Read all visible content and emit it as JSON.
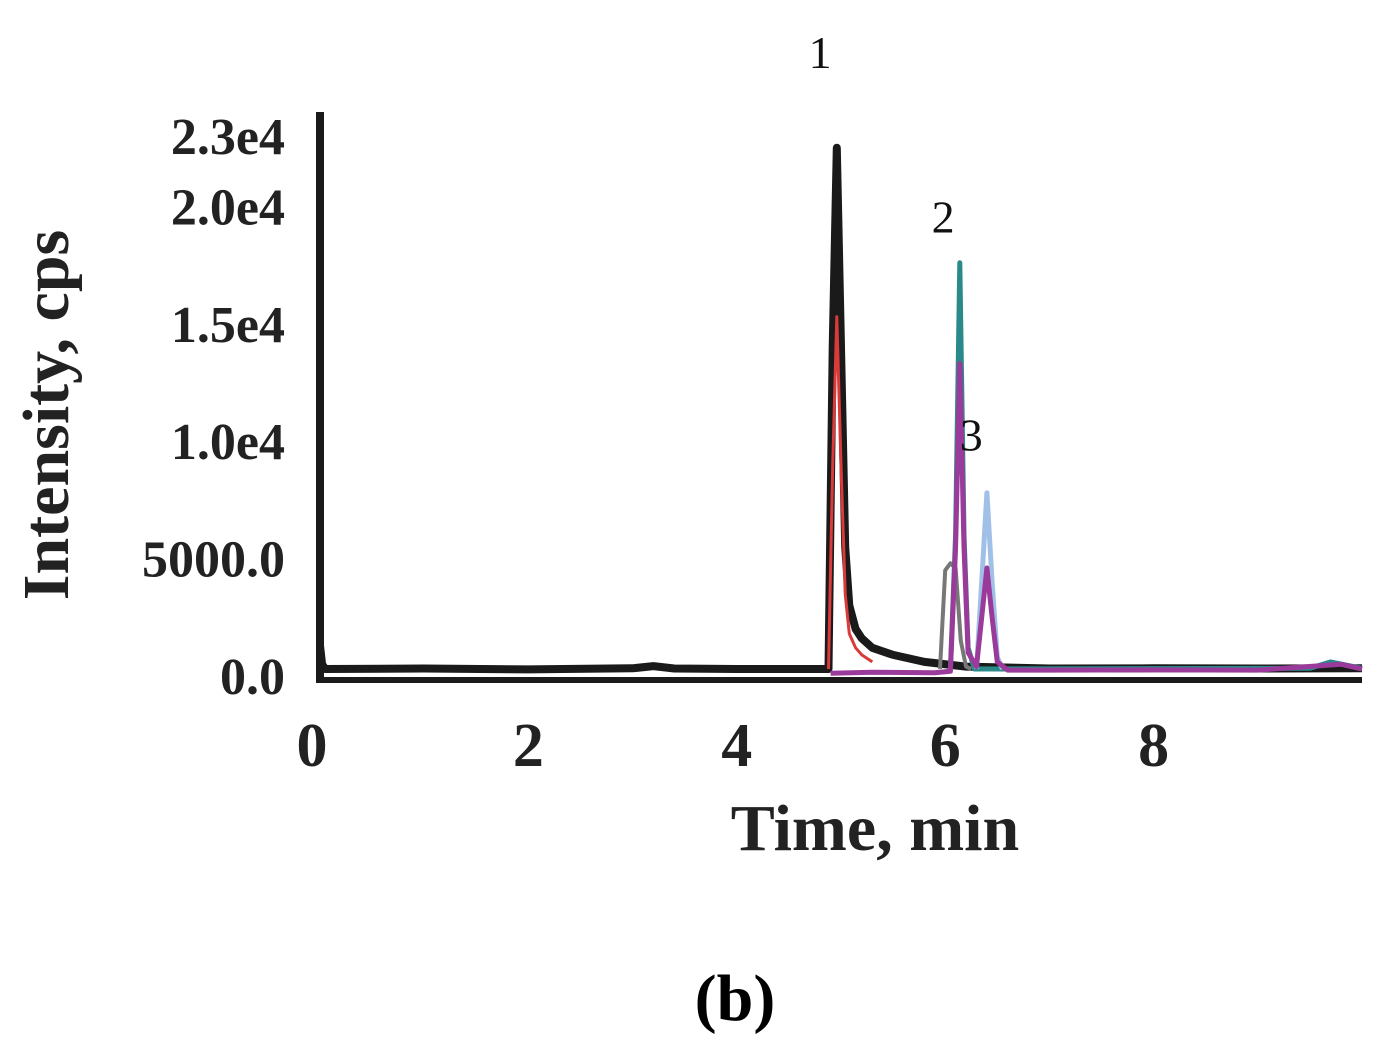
{
  "chart_data": {
    "type": "line",
    "xlabel": "Time, min",
    "ylabel": "Intensity, cps",
    "xlim": [
      0,
      10
    ],
    "ylim": [
      0,
      23000
    ],
    "x_ticks": [
      {
        "value": 0,
        "label": "0"
      },
      {
        "value": 2,
        "label": "2"
      },
      {
        "value": 4,
        "label": "4"
      },
      {
        "value": 6,
        "label": "6"
      },
      {
        "value": 8,
        "label": "8"
      }
    ],
    "y_ticks": [
      {
        "value": 0,
        "label": "0.0"
      },
      {
        "value": 5000,
        "label": "5000.0"
      },
      {
        "value": 10000,
        "label": "1.0e4"
      },
      {
        "value": 15000,
        "label": "1.5e4"
      },
      {
        "value": 20000,
        "label": "2.0e4"
      },
      {
        "value": 23000,
        "label": "2.3e4"
      }
    ],
    "grid": false,
    "series": [
      {
        "color": "#1a1a1a",
        "stroke": 8,
        "x": [
          0.0,
          0.02,
          0.05,
          1.0,
          2.0,
          3.0,
          3.2,
          3.4,
          4.0,
          4.88,
          4.92,
          4.96,
          5.0,
          5.04,
          5.08,
          5.14,
          5.2,
          5.3,
          5.5,
          5.8,
          6.2,
          7.0,
          8.0,
          9.0,
          10.0
        ],
        "y": [
          1300,
          500,
          300,
          320,
          280,
          330,
          420,
          320,
          300,
          300,
          14000,
          22500,
          14000,
          5500,
          3000,
          2000,
          1600,
          1200,
          900,
          600,
          400,
          320,
          330,
          320,
          330
        ]
      },
      {
        "color": "#d93a3a",
        "stroke": 3,
        "x": [
          4.88,
          4.92,
          4.96,
          5.0,
          5.04,
          5.08,
          5.14,
          5.2,
          5.3
        ],
        "y": [
          300,
          9000,
          15300,
          9000,
          3500,
          1800,
          1200,
          900,
          600
        ]
      },
      {
        "color": "#777777",
        "stroke": 4,
        "x": [
          5.95,
          6.0,
          6.05,
          6.1,
          6.15,
          6.2,
          6.25
        ],
        "y": [
          300,
          4500,
          4800,
          4600,
          1500,
          400,
          300
        ]
      },
      {
        "color": "#2a8a8a",
        "stroke": 5,
        "x": [
          6.05,
          6.1,
          6.14,
          6.18,
          6.22,
          6.28,
          9.5,
          9.7,
          10.0
        ],
        "y": [
          300,
          6000,
          17600,
          6000,
          1200,
          300,
          330,
          600,
          330
        ]
      },
      {
        "color": "#a0c0e8",
        "stroke": 5,
        "x": [
          6.3,
          6.35,
          6.4,
          6.45,
          6.5,
          6.55
        ],
        "y": [
          300,
          4000,
          7800,
          4000,
          800,
          300
        ]
      },
      {
        "color": "#9a3a9a",
        "stroke": 5,
        "x": [
          4.9,
          5.3,
          5.9,
          6.05,
          6.1,
          6.14,
          6.18,
          6.22,
          6.3,
          6.35,
          6.4,
          6.45,
          6.5,
          6.6,
          7.0,
          8.0,
          9.0,
          9.8,
          10.0
        ],
        "y": [
          120,
          160,
          140,
          200,
          5500,
          13300,
          5500,
          1000,
          400,
          2500,
          4600,
          2500,
          600,
          250,
          250,
          260,
          250,
          500,
          300
        ]
      }
    ],
    "annotations": [
      {
        "text": "1",
        "x": 4.8,
        "y": 25900
      },
      {
        "text": "2",
        "x": 5.98,
        "y": 18900
      },
      {
        "text": "3",
        "x": 6.25,
        "y": 9600
      }
    ]
  },
  "panel_label": "(b)"
}
